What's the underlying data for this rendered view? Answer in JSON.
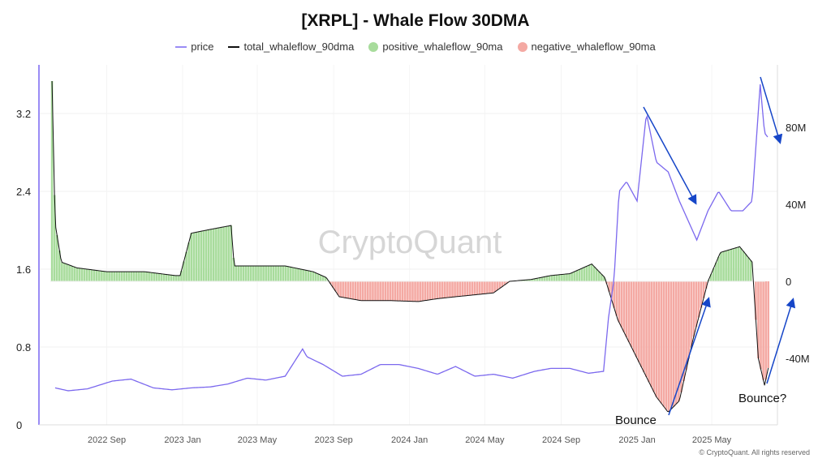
{
  "chart_data": {
    "type": "line",
    "title": "[XRPL] - Whale Flow 30DMA",
    "legend_position": "top",
    "grid": true,
    "colors": {
      "price": "#7b68ee",
      "total": "#111111",
      "positive": "#a8dc9c",
      "negative": "#f4a9a3",
      "annotation": "#1646c8"
    },
    "series": [
      {
        "name": "price",
        "axis": "left",
        "dates": [
          "2022-06-10",
          "2022-07-01",
          "2022-08-01",
          "2022-09-10",
          "2022-10-10",
          "2022-11-15",
          "2022-12-15",
          "2023-01-15",
          "2023-02-15",
          "2023-03-15",
          "2023-04-15",
          "2023-05-15",
          "2023-06-15",
          "2023-07-13",
          "2023-07-20",
          "2023-08-15",
          "2023-09-15",
          "2023-10-15",
          "2023-11-15",
          "2023-12-15",
          "2024-01-15",
          "2024-02-15",
          "2024-03-15",
          "2024-04-15",
          "2024-05-15",
          "2024-06-15",
          "2024-07-20",
          "2024-08-15",
          "2024-09-15",
          "2024-10-15",
          "2024-11-08",
          "2024-11-16",
          "2024-11-25",
          "2024-12-03",
          "2024-12-15",
          "2025-01-01",
          "2025-01-16",
          "2025-02-01",
          "2025-02-20",
          "2025-03-10",
          "2025-04-07",
          "2025-04-25",
          "2025-05-12",
          "2025-06-01",
          "2025-06-20",
          "2025-07-05",
          "2025-07-18",
          "2025-07-25",
          "2025-07-31"
        ],
        "values": [
          0.38,
          0.35,
          0.37,
          0.45,
          0.47,
          0.38,
          0.36,
          0.38,
          0.39,
          0.42,
          0.48,
          0.46,
          0.5,
          0.78,
          0.7,
          0.62,
          0.5,
          0.52,
          0.62,
          0.62,
          0.58,
          0.52,
          0.6,
          0.5,
          0.52,
          0.48,
          0.55,
          0.58,
          0.58,
          0.53,
          0.55,
          1.1,
          1.5,
          2.4,
          2.5,
          2.3,
          3.2,
          2.7,
          2.6,
          2.3,
          1.9,
          2.2,
          2.4,
          2.2,
          2.2,
          2.3,
          3.5,
          3.0,
          2.95
        ]
      },
      {
        "name": "total_whaleflow_90dma",
        "axis": "right",
        "dates": [
          "2022-06-05",
          "2022-06-10",
          "2022-06-20",
          "2022-07-15",
          "2022-09-01",
          "2022-11-01",
          "2022-12-20",
          "2022-12-28",
          "2023-01-15",
          "2023-02-15",
          "2023-03-20",
          "2023-03-25",
          "2023-05-01",
          "2023-06-15",
          "2023-07-30",
          "2023-08-20",
          "2023-09-10",
          "2023-10-15",
          "2023-12-01",
          "2024-01-15",
          "2024-02-15",
          "2024-03-15",
          "2024-04-15",
          "2024-05-15",
          "2024-06-10",
          "2024-07-15",
          "2024-08-15",
          "2024-09-15",
          "2024-10-20",
          "2024-11-10",
          "2024-12-01",
          "2025-01-01",
          "2025-02-01",
          "2025-02-20",
          "2025-03-10",
          "2025-04-01",
          "2025-04-25",
          "2025-05-15",
          "2025-06-15",
          "2025-07-05",
          "2025-07-15",
          "2025-07-25",
          "2025-07-31"
        ],
        "values": [
          104,
          30,
          10,
          7,
          5,
          5,
          3,
          3,
          25,
          27,
          29,
          8,
          8,
          8,
          5,
          2,
          -8,
          -10,
          -10,
          -10.5,
          -9,
          -8,
          -7,
          -6,
          0,
          1,
          3,
          4,
          9,
          2,
          -20,
          -40,
          -60,
          -68,
          -62,
          -30,
          0,
          15,
          18,
          10,
          -40,
          -54,
          -45
        ]
      }
    ],
    "positive_series": "positive_whaleflow_90ma",
    "negative_series": "negative_whaleflow_90ma",
    "y_left": {
      "ticks": [
        "0",
        "0.8",
        "1.6",
        "2.4",
        "3.2"
      ],
      "range": [
        0,
        3.6
      ]
    },
    "y_right": {
      "ticks": [
        "-40M",
        "0",
        "40M",
        "80M"
      ],
      "range_millions": [
        -75,
        115
      ]
    },
    "x_ticks": [
      "2022 Sep",
      "2023 Jan",
      "2023 May",
      "2023 Sep",
      "2024 Jan",
      "2024 May",
      "2024 Sep",
      "2025 Jan",
      "2025 May"
    ],
    "x_tick_dates": [
      "2022-09-01",
      "2023-01-01",
      "2023-05-01",
      "2023-09-01",
      "2024-01-01",
      "2024-05-01",
      "2024-09-01",
      "2025-01-01",
      "2025-05-01"
    ],
    "annotations": [
      "Bounce",
      "Bounce?"
    ],
    "watermark": "CryptoQuant"
  },
  "legend": [
    "price",
    "total_whaleflow_90dma",
    "positive_whaleflow_90ma",
    "negative_whaleflow_90ma"
  ],
  "copyright": "© CryptoQuant. All rights reserved"
}
